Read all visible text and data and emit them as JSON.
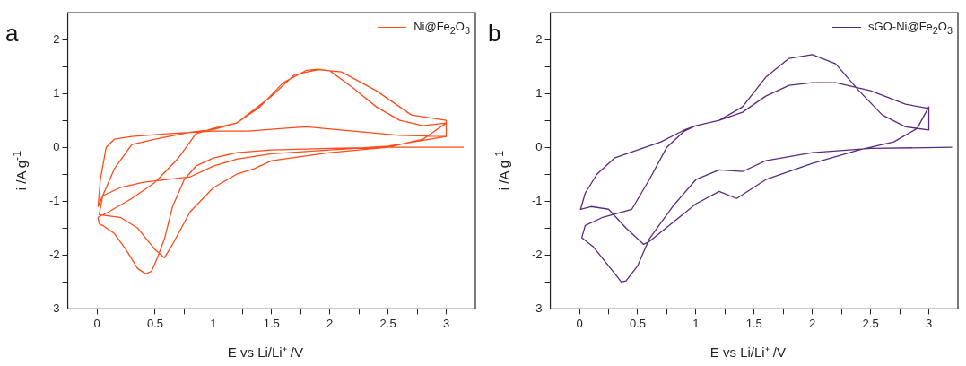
{
  "chart_data": [
    {
      "type": "line",
      "title": "a",
      "xlabel": "E vs Li/Li⁺ /V",
      "ylabel": "i /A g$^{-1}$",
      "xlim": [
        -0.25,
        3.25
      ],
      "ylim": [
        -3,
        2.5
      ],
      "xticks": [
        0,
        {
          "value": 0.25,
          "label": null
        },
        0.5,
        {
          "value": 0.75,
          "label": null
        },
        1,
        {
          "value": 1.25,
          "label": null
        },
        1.5,
        {
          "value": 1.75,
          "label": null
        },
        2,
        {
          "value": 2.25,
          "label": null
        },
        2.5,
        {
          "value": 2.75,
          "label": null
        },
        3
      ],
      "yticks": [
        -3,
        {
          "value": -2.5,
          "label": null
        },
        -2,
        {
          "value": -1.5,
          "label": null
        },
        -1,
        {
          "value": -0.5,
          "label": null
        },
        0,
        {
          "value": 0.5,
          "label": null
        },
        1,
        {
          "value": 1.5,
          "label": null
        },
        2
      ],
      "grid": false,
      "legend": "top right",
      "series": [
        {
          "name": "Ni@Fe$_{2}$O$_{3}$",
          "color": "#ff4a1a",
          "x": [
            3.15,
            2.5,
            2,
            1.5,
            1.2,
            1,
            0.85,
            0.75,
            0.65,
            0.58,
            0.52,
            0.47,
            0.42,
            0.35,
            0.25,
            0.15,
            0.05,
            0.02,
            0.01,
            0.1,
            0.3,
            0.5,
            0.7,
            0.85,
            1,
            1.2,
            1.4,
            1.6,
            1.8,
            1.9,
            2,
            2.2,
            2.4,
            2.6,
            2.8,
            3,
            2.8,
            2.5,
            2,
            1.5,
            1.35,
            1.2,
            1,
            0.8,
            0.65,
            0.58,
            0.5,
            0.35,
            0.2,
            0.02,
            0.05,
            0.15,
            0.3,
            0.5,
            0.8,
            1,
            1.2,
            1.5,
            1.7,
            1.9,
            2.1,
            2.4,
            2.7,
            3,
            3,
            2.5,
            2,
            1.5,
            1.2,
            1,
            0.8,
            0.6,
            0.4,
            0.2,
            0.05,
            0.01,
            0.03,
            0.08,
            0.15,
            0.3,
            0.6,
            1,
            1.3,
            1.6,
            1.8,
            2.2,
            2.6,
            3
          ],
          "values": [
            0,
            0,
            -0.02,
            -0.05,
            -0.1,
            -0.2,
            -0.35,
            -0.6,
            -1.1,
            -1.7,
            -2.05,
            -2.3,
            -2.35,
            -2.25,
            -1.9,
            -1.6,
            -1.45,
            -1.42,
            -1.3,
            -1.2,
            -0.95,
            -0.65,
            -0.2,
            0.25,
            0.35,
            0.45,
            0.75,
            1.2,
            1.43,
            1.45,
            1.42,
            1.1,
            0.75,
            0.5,
            0.4,
            0.45,
            0.15,
            0,
            -0.1,
            -0.25,
            -0.4,
            -0.5,
            -0.75,
            -1.2,
            -1.8,
            -2.05,
            -1.9,
            -1.5,
            -1.3,
            -1.25,
            -0.9,
            -0.4,
            0.05,
            0.15,
            0.28,
            0.33,
            0.45,
            0.95,
            1.35,
            1.44,
            1.4,
            1.05,
            0.6,
            0.5,
            0.2,
            0.02,
            -0.05,
            -0.12,
            -0.22,
            -0.35,
            -0.55,
            -0.6,
            -0.65,
            -0.75,
            -0.9,
            -1.1,
            -0.6,
            0,
            0.15,
            0.2,
            0.25,
            0.3,
            0.3,
            0.35,
            0.38,
            0.3,
            0.22,
            0.2
          ]
        }
      ]
    },
    {
      "type": "line",
      "title": "b",
      "xlabel": "E vs Li/Li⁺ /V",
      "ylabel": "i /A g$^{-1}$",
      "xlim": [
        -0.25,
        3.25
      ],
      "ylim": [
        -3,
        2.5
      ],
      "xticks": [
        0,
        {
          "value": 0.25,
          "label": null
        },
        0.5,
        {
          "value": 0.75,
          "label": null
        },
        1,
        {
          "value": 1.25,
          "label": null
        },
        1.5,
        {
          "value": 1.75,
          "label": null
        },
        2,
        {
          "value": 2.25,
          "label": null
        },
        2.5,
        {
          "value": 2.75,
          "label": null
        },
        3
      ],
      "yticks": [
        -3,
        {
          "value": -2.5,
          "label": null
        },
        -2,
        {
          "value": -1.5,
          "label": null
        },
        -1,
        {
          "value": -0.5,
          "label": null
        },
        0,
        {
          "value": 0.5,
          "label": null
        },
        1,
        {
          "value": 1.5,
          "label": null
        },
        2
      ],
      "grid": false,
      "legend": "top right",
      "series": [
        {
          "name": "sGO-Ni@Fe$_{2}$O$_{3}$",
          "color": "#5b2a7e",
          "x": [
            3.2,
            2.5,
            2,
            1.6,
            1.4,
            1.2,
            1,
            0.8,
            0.6,
            0.5,
            0.4,
            0.36,
            0.25,
            0.12,
            0.02,
            0.05,
            0.2,
            0.45,
            0.6,
            0.75,
            0.9,
            1,
            1.2,
            1.4,
            1.6,
            1.8,
            2,
            2.2,
            2.4,
            2.6,
            2.8,
            3,
            3,
            2.9,
            2.7,
            2.4,
            2,
            1.6,
            1.35,
            1.2,
            1,
            0.8,
            0.6,
            0.55,
            0.4,
            0.25,
            0.1,
            0.01,
            0.05,
            0.15,
            0.3,
            0.5,
            0.7,
            0.9,
            1,
            1.2,
            1.4,
            1.6,
            1.8,
            2,
            2.2,
            2.5,
            2.8,
            3
          ],
          "values": [
            0,
            -0.02,
            -0.1,
            -0.25,
            -0.45,
            -0.42,
            -0.6,
            -1.1,
            -1.7,
            -2.2,
            -2.48,
            -2.5,
            -2.2,
            -1.85,
            -1.68,
            -1.45,
            -1.3,
            -1.15,
            -0.6,
            0,
            0.3,
            0.4,
            0.5,
            0.75,
            1.3,
            1.65,
            1.72,
            1.55,
            1.05,
            0.6,
            0.38,
            0.32,
            0.75,
            0.35,
            0.1,
            -0.05,
            -0.3,
            -0.6,
            -0.95,
            -0.82,
            -1.05,
            -1.4,
            -1.75,
            -1.8,
            -1.5,
            -1.15,
            -1.1,
            -1.15,
            -0.85,
            -0.5,
            -0.2,
            -0.05,
            0.1,
            0.32,
            0.4,
            0.5,
            0.65,
            0.95,
            1.15,
            1.2,
            1.2,
            1.05,
            0.8,
            0.72
          ]
        }
      ]
    }
  ]
}
